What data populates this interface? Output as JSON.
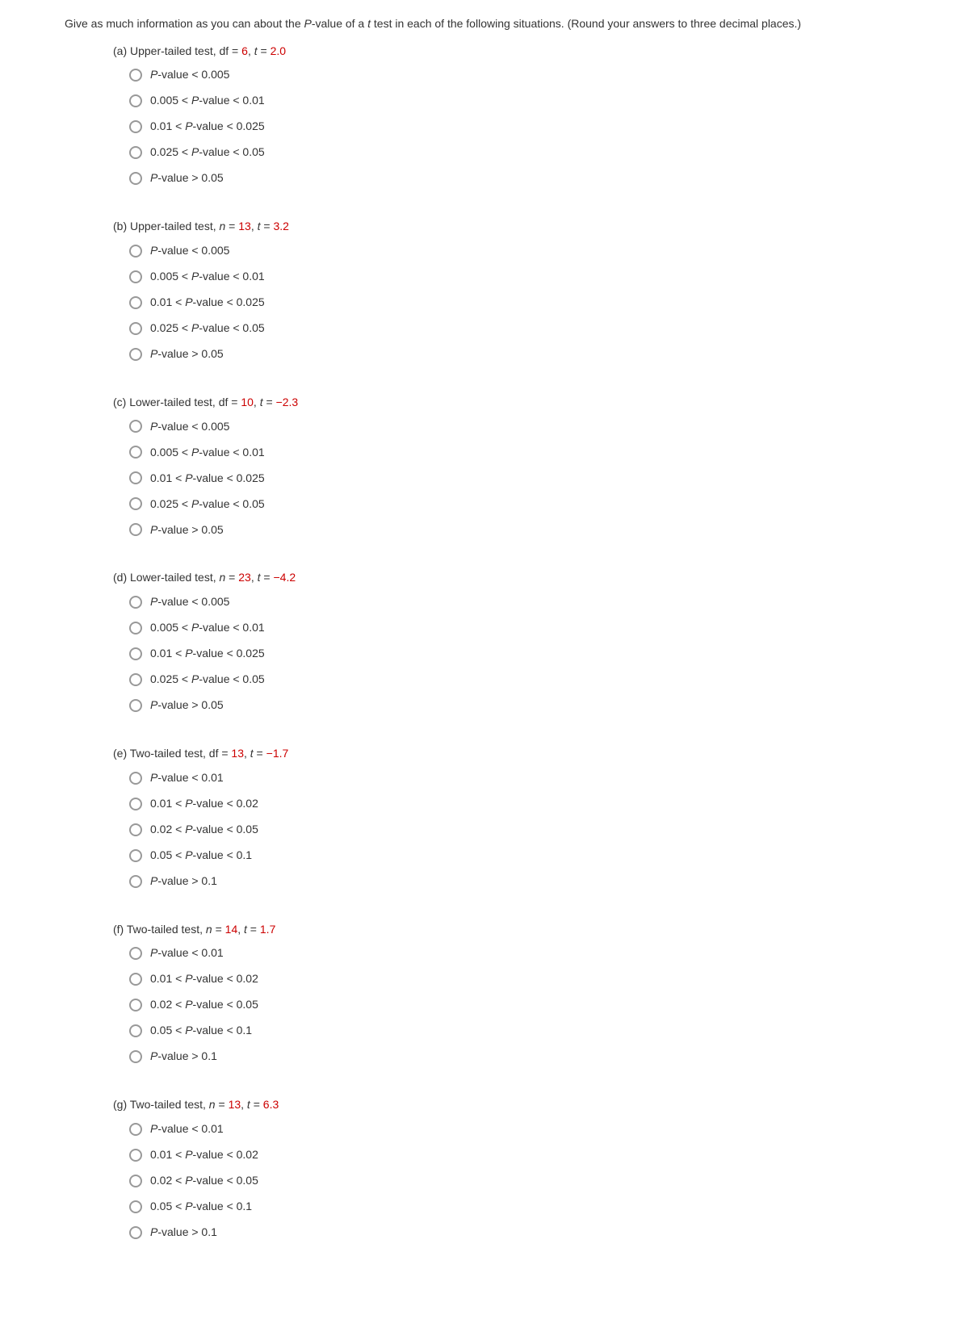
{
  "intro": {
    "pre": "Give as much information as you can about the ",
    "pval": "P",
    "mid1": "-value of a ",
    "t": "t",
    "mid2": " test in each of the following situations. (Round your answers to three decimal places.)"
  },
  "questions": [
    {
      "label": "(a)",
      "prompt": {
        "text_before": "Upper-tailed test,  df = ",
        "red1": "6",
        "mid": ",   ",
        "tvar": "t",
        "eq": " = ",
        "red2": "2.0"
      },
      "options": [
        {
          "html": "<span class='ital'>P</span>-value &lt; 0.005"
        },
        {
          "html": "0.005 &lt; <span class='ital'>P</span>-value &lt; 0.01"
        },
        {
          "html": "0.01 &lt; <span class='ital'>P</span>-value &lt; 0.025"
        },
        {
          "html": "0.025 &lt; <span class='ital'>P</span>-value &lt; 0.05"
        },
        {
          "html": "<span class='ital'>P</span>-value &gt; 0.05"
        }
      ]
    },
    {
      "label": "(b)",
      "prompt": {
        "text_before": "Upper-tailed test,  ",
        "nvar": "n",
        "neq": " = ",
        "red1": "13",
        "mid": ",   ",
        "tvar": "t",
        "eq": " = ",
        "red2": "3.2"
      },
      "options": [
        {
          "html": "<span class='ital'>P</span>-value &lt; 0.005"
        },
        {
          "html": "0.005 &lt; <span class='ital'>P</span>-value &lt; 0.01"
        },
        {
          "html": "0.01 &lt; <span class='ital'>P</span>-value &lt; 0.025"
        },
        {
          "html": "0.025 &lt; <span class='ital'>P</span>-value &lt; 0.05"
        },
        {
          "html": "<span class='ital'>P</span>-value &gt; 0.05"
        }
      ]
    },
    {
      "label": "(c)",
      "prompt": {
        "text_before": "Lower-tailed test,  df = ",
        "red1": "10",
        "mid": ",   ",
        "tvar": "t",
        "eq": " = ",
        "red2": "−2.3"
      },
      "options": [
        {
          "html": "<span class='ital'>P</span>-value &lt; 0.005"
        },
        {
          "html": "0.005 &lt; <span class='ital'>P</span>-value &lt; 0.01"
        },
        {
          "html": "0.01 &lt; <span class='ital'>P</span>-value &lt; 0.025"
        },
        {
          "html": "0.025 &lt; <span class='ital'>P</span>-value &lt; 0.05"
        },
        {
          "html": "<span class='ital'>P</span>-value &gt; 0.05"
        }
      ]
    },
    {
      "label": "(d)",
      "prompt": {
        "text_before": "Lower-tailed test,  ",
        "nvar": "n",
        "neq": " = ",
        "red1": "23",
        "mid": ",   ",
        "tvar": "t",
        "eq": " = ",
        "red2": "−4.2"
      },
      "options": [
        {
          "html": "<span class='ital'>P</span>-value &lt; 0.005"
        },
        {
          "html": "0.005 &lt; <span class='ital'>P</span>-value &lt; 0.01"
        },
        {
          "html": "0.01 &lt; <span class='ital'>P</span>-value &lt; 0.025"
        },
        {
          "html": "0.025 &lt; <span class='ital'>P</span>-value &lt; 0.05"
        },
        {
          "html": "<span class='ital'>P</span>-value &gt; 0.05"
        }
      ]
    },
    {
      "label": "(e)",
      "prompt": {
        "text_before": "Two-tailed test,  df = ",
        "red1": "13",
        "mid": ",   ",
        "tvar": "t",
        "eq": " = ",
        "red2": "−1.7"
      },
      "options": [
        {
          "html": "<span class='ital'>P</span>-value &lt; 0.01"
        },
        {
          "html": "0.01 &lt; <span class='ital'>P</span>-value &lt; 0.02"
        },
        {
          "html": "0.02 &lt; <span class='ital'>P</span>-value &lt; 0.05"
        },
        {
          "html": "0.05 &lt; <span class='ital'>P</span>-value &lt; 0.1"
        },
        {
          "html": "<span class='ital'>P</span>-value &gt; 0.1"
        }
      ]
    },
    {
      "label": "(f)",
      "prompt": {
        "text_before": "Two-tailed test,  ",
        "nvar": "n",
        "neq": " = ",
        "red1": "14",
        "mid": ",   ",
        "tvar": "t",
        "eq": " = ",
        "red2": "1.7"
      },
      "options": [
        {
          "html": "<span class='ital'>P</span>-value &lt; 0.01"
        },
        {
          "html": "0.01 &lt; <span class='ital'>P</span>-value &lt; 0.02"
        },
        {
          "html": "0.02 &lt; <span class='ital'>P</span>-value &lt; 0.05"
        },
        {
          "html": "0.05 &lt; <span class='ital'>P</span>-value &lt; 0.1"
        },
        {
          "html": "<span class='ital'>P</span>-value &gt; 0.1"
        }
      ]
    },
    {
      "label": "(g)",
      "prompt": {
        "text_before": "Two-tailed test,  ",
        "nvar": "n",
        "neq": " = ",
        "red1": "13",
        "mid": ",   ",
        "tvar": "t",
        "eq": " = ",
        "red2": "6.3"
      },
      "options": [
        {
          "html": "<span class='ital'>P</span>-value &lt; 0.01"
        },
        {
          "html": "0.01 &lt; <span class='ital'>P</span>-value &lt; 0.02"
        },
        {
          "html": "0.02 &lt; <span class='ital'>P</span>-value &lt; 0.05"
        },
        {
          "html": "0.05 &lt; <span class='ital'>P</span>-value &lt; 0.1"
        },
        {
          "html": "<span class='ital'>P</span>-value &gt; 0.1"
        }
      ]
    }
  ]
}
